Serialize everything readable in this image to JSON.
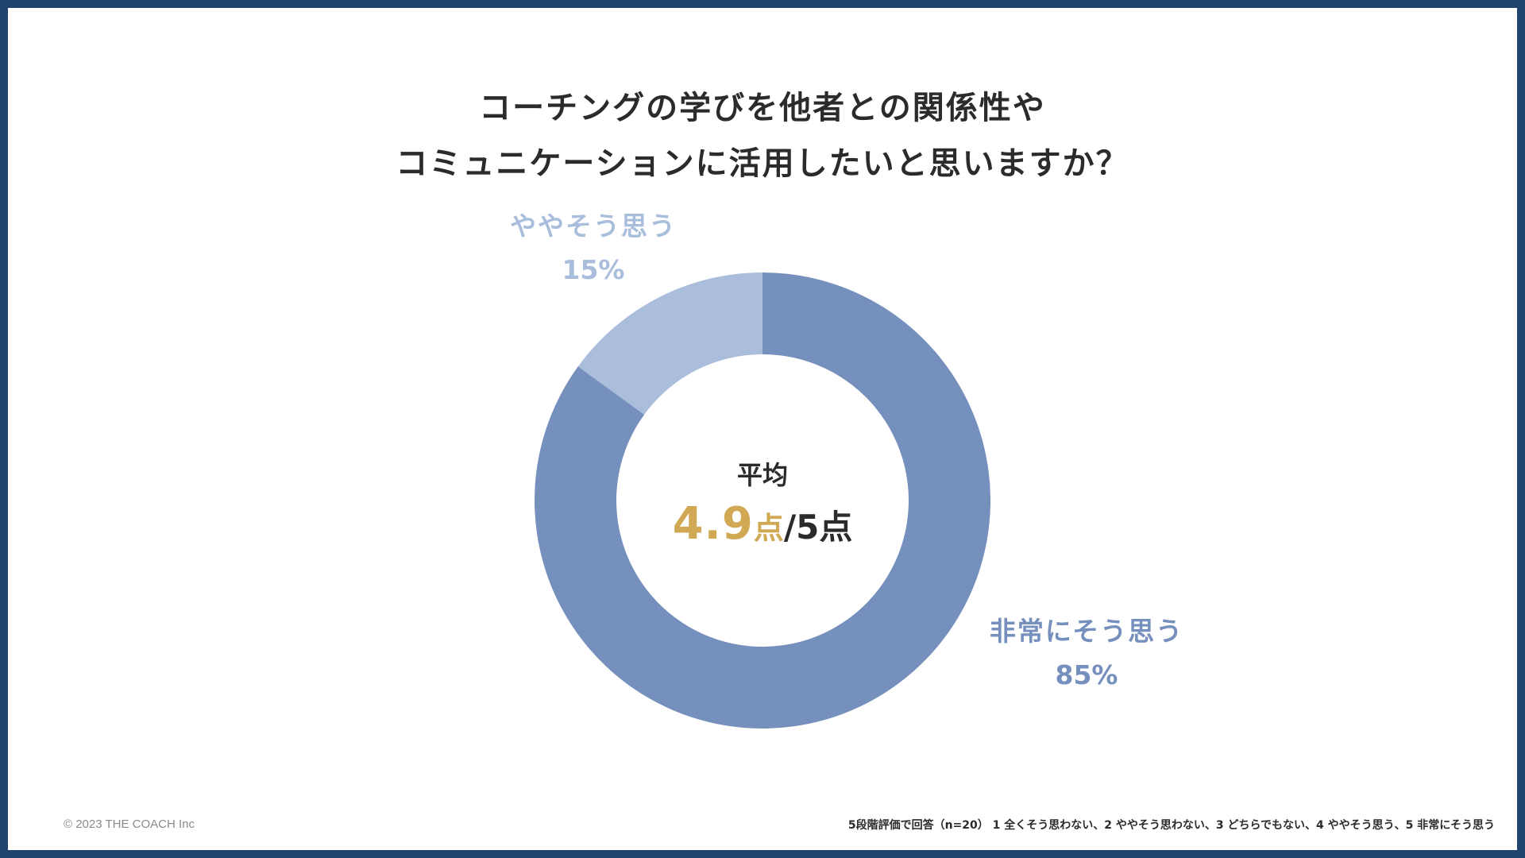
{
  "title": {
    "line1": "コーチングの学びを他者との関係性や",
    "line2": "コミュニケーションに活用したいと思いますか？"
  },
  "chart_data": {
    "type": "pie",
    "donut": true,
    "categories": [
      "非常にそう思う",
      "ややそう思う"
    ],
    "values": [
      85,
      15
    ],
    "value_labels": [
      "85%",
      "15%"
    ],
    "colors": [
      "#7690bd",
      "#aabedc"
    ],
    "legend": "none"
  },
  "center": {
    "title": "平均",
    "score_value": "4.9",
    "score_unit": "点",
    "score_rest": "/5点"
  },
  "labels": {
    "large": {
      "name": "非常にそう思う",
      "pct": "85%"
    },
    "small": {
      "name": "ややそう思う",
      "pct": "15%"
    }
  },
  "footer": {
    "copyright": "© 2023 THE COACH Inc",
    "note": "5段階評価で回答（n=20） 1 全くそう思わない、2 ややそう思わない、3 どちらでもない、4 ややそう思う、5 非常にそう思う"
  },
  "colors": {
    "frame": "#21466d",
    "accent": "#d1a854",
    "text": "#2b2b2b"
  }
}
